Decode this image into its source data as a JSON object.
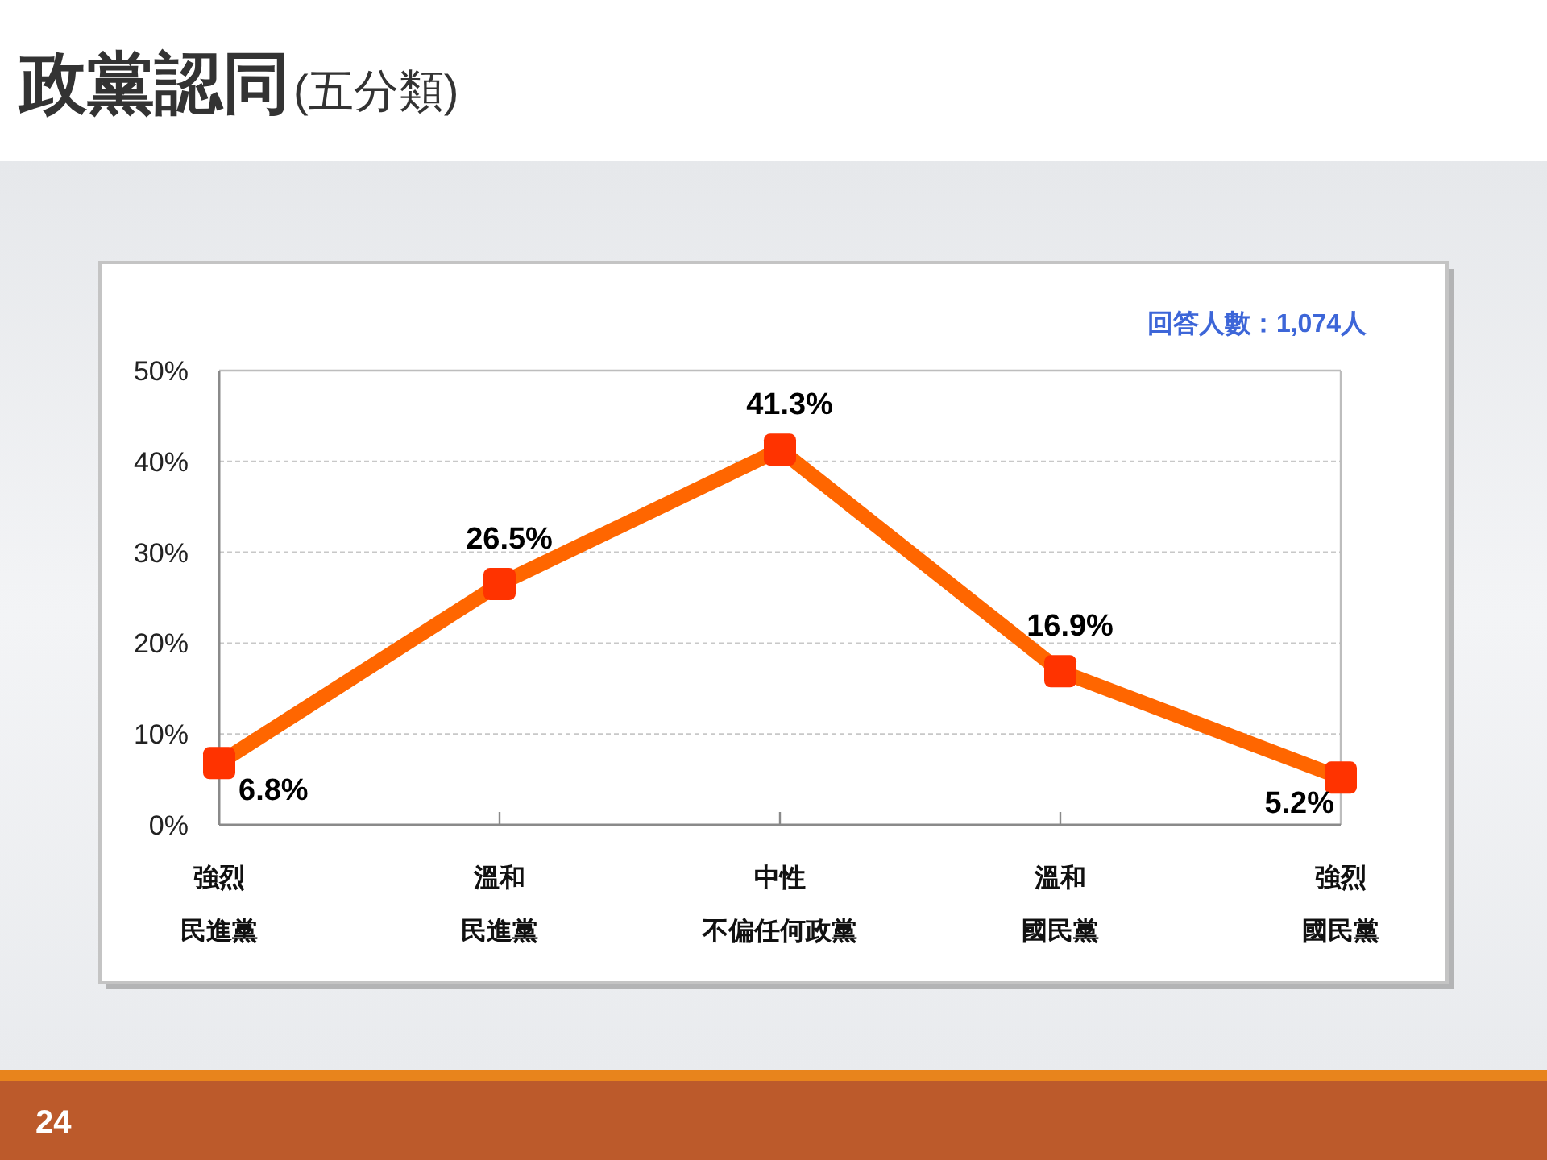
{
  "chart_data": {
    "type": "line",
    "title": "政黨認同",
    "subtitle": "(五分類)",
    "categories": [
      "強烈民進黨",
      "溫和民進黨",
      "中性不偏任何政黨",
      "溫和國民黨",
      "強烈國民黨"
    ],
    "series": [
      {
        "color": "#ff6600",
        "colors": [
          "#ff3300",
          "#ff3300",
          "#ff3300",
          "#ff3300",
          "#ff3300"
        ],
        "values": [
          6.8,
          26.5,
          41.3,
          16.9,
          5.2
        ],
        "value_labels": [
          "6.8%",
          "26.5%",
          "41.3%",
          "16.9%",
          "5.2%"
        ]
      }
    ],
    "ylim": [
      0,
      50
    ],
    "yticks": [
      {
        "value": 0,
        "label": "0%"
      },
      {
        "value": 10,
        "label": "10%"
      },
      {
        "value": 20,
        "label": "20%"
      },
      {
        "value": 30,
        "label": "30%"
      },
      {
        "value": 40,
        "label": "40%"
      },
      {
        "value": 50,
        "label": "50%"
      }
    ],
    "grid": "y",
    "marker": "square",
    "line_style": "solid",
    "annotations": [
      "回答人數：1,074人",
      "24"
    ]
  }
}
